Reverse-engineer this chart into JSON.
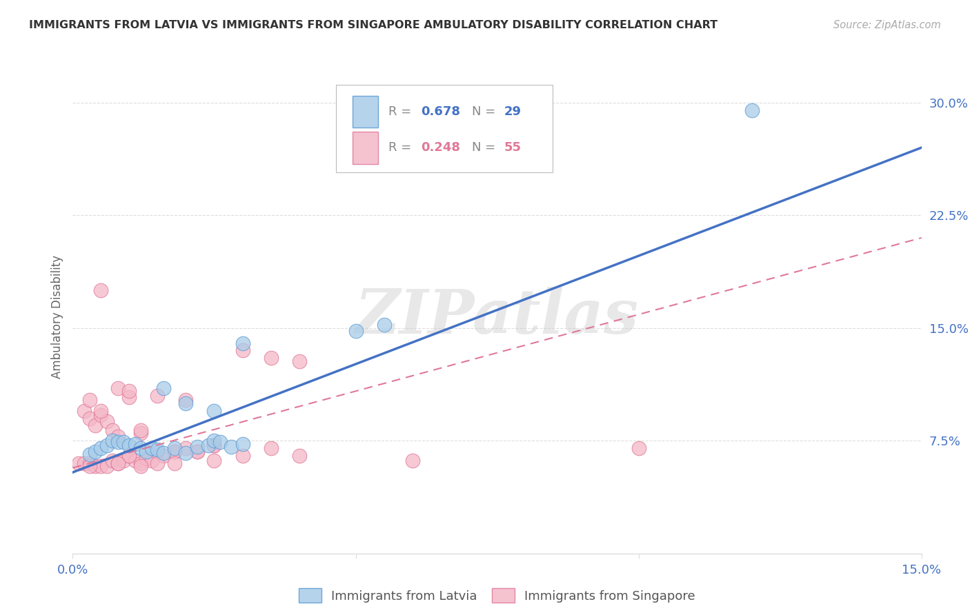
{
  "title": "IMMIGRANTS FROM LATVIA VS IMMIGRANTS FROM SINGAPORE AMBULATORY DISABILITY CORRELATION CHART",
  "source_text": "Source: ZipAtlas.com",
  "ylabel": "Ambulatory Disability",
  "xlim": [
    0.0,
    0.15
  ],
  "ylim": [
    0.0,
    0.315
  ],
  "xtick_positions": [
    0.0,
    0.05,
    0.1,
    0.15
  ],
  "xtick_labels": [
    "0.0%",
    "",
    "",
    "15.0%"
  ],
  "ytick_labels": [
    "7.5%",
    "15.0%",
    "22.5%",
    "30.0%"
  ],
  "ytick_positions": [
    0.075,
    0.15,
    0.225,
    0.3
  ],
  "background_color": "#ffffff",
  "watermark_text": "ZIPatlas",
  "grid_color": "#dddddd",
  "latvia_color": "#a8cce8",
  "latvia_edge_color": "#5b9bd5",
  "singapore_color": "#f4b8c8",
  "singapore_edge_color": "#e07898",
  "latvia_line_color": "#4472c4",
  "singapore_line_color": "#e07898",
  "latvia_scatter_x": [
    0.003,
    0.004,
    0.005,
    0.006,
    0.007,
    0.008,
    0.009,
    0.01,
    0.011,
    0.012,
    0.013,
    0.014,
    0.015,
    0.016,
    0.018,
    0.02,
    0.022,
    0.024,
    0.025,
    0.026,
    0.028,
    0.03,
    0.016,
    0.02,
    0.025,
    0.03,
    0.05,
    0.055,
    0.12
  ],
  "latvia_scatter_y": [
    0.066,
    0.068,
    0.07,
    0.072,
    0.075,
    0.074,
    0.074,
    0.072,
    0.073,
    0.07,
    0.068,
    0.07,
    0.069,
    0.067,
    0.07,
    0.067,
    0.071,
    0.072,
    0.075,
    0.074,
    0.071,
    0.073,
    0.11,
    0.1,
    0.095,
    0.14,
    0.148,
    0.152,
    0.295
  ],
  "singapore_scatter_x": [
    0.001,
    0.002,
    0.002,
    0.003,
    0.003,
    0.004,
    0.004,
    0.005,
    0.005,
    0.006,
    0.006,
    0.007,
    0.007,
    0.008,
    0.008,
    0.009,
    0.01,
    0.01,
    0.011,
    0.012,
    0.012,
    0.013,
    0.014,
    0.015,
    0.016,
    0.018,
    0.02,
    0.022,
    0.025,
    0.003,
    0.005,
    0.008,
    0.01,
    0.012,
    0.015,
    0.018,
    0.02,
    0.022,
    0.025,
    0.03,
    0.035,
    0.04,
    0.005,
    0.01,
    0.015,
    0.025,
    0.06,
    0.1,
    0.003,
    0.008,
    0.012,
    0.018,
    0.035,
    0.04,
    0.03
  ],
  "singapore_scatter_y": [
    0.06,
    0.06,
    0.095,
    0.06,
    0.09,
    0.058,
    0.085,
    0.058,
    0.092,
    0.058,
    0.088,
    0.062,
    0.082,
    0.06,
    0.078,
    0.062,
    0.065,
    0.104,
    0.062,
    0.06,
    0.08,
    0.063,
    0.062,
    0.068,
    0.065,
    0.068,
    0.07,
    0.068,
    0.072,
    0.102,
    0.095,
    0.11,
    0.108,
    0.082,
    0.105,
    0.068,
    0.102,
    0.068,
    0.072,
    0.065,
    0.07,
    0.065,
    0.175,
    0.065,
    0.06,
    0.062,
    0.062,
    0.07,
    0.058,
    0.06,
    0.058,
    0.06,
    0.13,
    0.128,
    0.135
  ],
  "latvia_line_x": [
    0.0,
    0.15
  ],
  "latvia_line_y": [
    0.054,
    0.27
  ],
  "singapore_line_x": [
    0.0,
    0.15
  ],
  "singapore_line_y": [
    0.057,
    0.21
  ]
}
